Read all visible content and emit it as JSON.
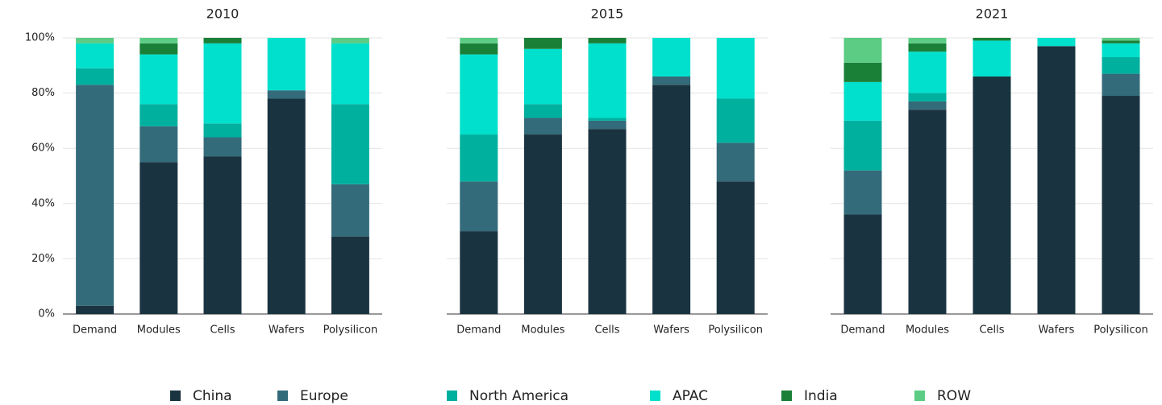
{
  "chart_data": [
    {
      "type": "bar",
      "stacked": true,
      "title": "2010",
      "categories": [
        "Demand",
        "Modules",
        "Cells",
        "Wafers",
        "Polysilicon"
      ],
      "ylim": [
        0,
        100
      ],
      "yticks": [
        {
          "value": 0,
          "label": "0%"
        },
        {
          "value": 20,
          "label": "20%"
        },
        {
          "value": 40,
          "label": "40%"
        },
        {
          "value": 60,
          "label": "60%"
        },
        {
          "value": 80,
          "label": "80%"
        },
        {
          "value": 100,
          "label": "100%"
        }
      ],
      "grid": true,
      "series": [
        {
          "name": "China",
          "color": "#1a3340",
          "values": [
            3,
            55,
            57,
            78,
            28
          ]
        },
        {
          "name": "Europe",
          "color": "#336b7a",
          "values": [
            80,
            13,
            7,
            3,
            19
          ]
        },
        {
          "name": "North America",
          "color": "#00b09f",
          "values": [
            6,
            8,
            5,
            0,
            29
          ]
        },
        {
          "name": "APAC",
          "color": "#00e0cc",
          "values": [
            9,
            18,
            29,
            19,
            22
          ]
        },
        {
          "name": "India",
          "color": "#1a8038",
          "values": [
            0,
            4,
            2,
            0,
            0
          ]
        },
        {
          "name": "ROW",
          "color": "#5ccc85",
          "values": [
            2,
            2,
            0,
            0,
            2
          ]
        }
      ]
    },
    {
      "type": "bar",
      "stacked": true,
      "title": "2015",
      "categories": [
        "Demand",
        "Modules",
        "Cells",
        "Wafers",
        "Polysilicon"
      ],
      "ylim": [
        0,
        100
      ],
      "yticks": [
        0,
        20,
        40,
        60,
        80,
        100
      ],
      "grid": true,
      "series": [
        {
          "name": "China",
          "color": "#1a3340",
          "values": [
            30,
            65,
            67,
            83,
            48
          ]
        },
        {
          "name": "Europe",
          "color": "#336b7a",
          "values": [
            18,
            6,
            3,
            3,
            14
          ]
        },
        {
          "name": "North America",
          "color": "#00b09f",
          "values": [
            17,
            5,
            1,
            0,
            16
          ]
        },
        {
          "name": "APAC",
          "color": "#00e0cc",
          "values": [
            29,
            20,
            27,
            14,
            22
          ]
        },
        {
          "name": "India",
          "color": "#1a8038",
          "values": [
            4,
            4,
            2,
            0,
            0
          ]
        },
        {
          "name": "ROW",
          "color": "#5ccc85",
          "values": [
            2,
            0,
            0,
            0,
            0
          ]
        }
      ]
    },
    {
      "type": "bar",
      "stacked": true,
      "title": "2021",
      "categories": [
        "Demand",
        "Modules",
        "Cells",
        "Wafers",
        "Polysilicon"
      ],
      "ylim": [
        0,
        100
      ],
      "yticks": [
        0,
        20,
        40,
        60,
        80,
        100
      ],
      "grid": true,
      "series": [
        {
          "name": "China",
          "color": "#1a3340",
          "values": [
            36,
            74,
            86,
            97,
            79
          ]
        },
        {
          "name": "Europe",
          "color": "#336b7a",
          "values": [
            16,
            3,
            0,
            0,
            8
          ]
        },
        {
          "name": "North America",
          "color": "#00b09f",
          "values": [
            18,
            3,
            0,
            0,
            6
          ]
        },
        {
          "name": "APAC",
          "color": "#00e0cc",
          "values": [
            14,
            15,
            13,
            3,
            5
          ]
        },
        {
          "name": "India",
          "color": "#1a8038",
          "values": [
            7,
            3,
            1,
            0,
            1
          ]
        },
        {
          "name": "ROW",
          "color": "#5ccc85",
          "values": [
            9,
            2,
            0,
            0,
            1
          ]
        }
      ]
    }
  ]
}
